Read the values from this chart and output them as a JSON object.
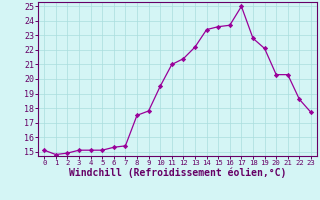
{
  "x": [
    0,
    1,
    2,
    3,
    4,
    5,
    6,
    7,
    8,
    9,
    10,
    11,
    12,
    13,
    14,
    15,
    16,
    17,
    18,
    19,
    20,
    21,
    22,
    23
  ],
  "y": [
    15.1,
    14.8,
    14.9,
    15.1,
    15.1,
    15.1,
    15.3,
    15.4,
    17.5,
    17.8,
    19.5,
    21.0,
    21.4,
    22.2,
    23.4,
    23.6,
    23.7,
    25.0,
    22.8,
    22.1,
    20.3,
    20.3,
    18.6,
    17.7
  ],
  "line_color": "#990099",
  "marker": "D",
  "marker_size": 2.2,
  "bg_color": "#d4f5f5",
  "grid_color": "#aadddd",
  "xlabel": "Windchill (Refroidissement éolien,°C)",
  "xlabel_color": "#660066",
  "ylim_min": 14.7,
  "ylim_max": 25.3,
  "xlim_min": -0.5,
  "xlim_max": 23.5,
  "yticks": [
    15,
    16,
    17,
    18,
    19,
    20,
    21,
    22,
    23,
    24,
    25
  ],
  "xticks": [
    0,
    1,
    2,
    3,
    4,
    5,
    6,
    7,
    8,
    9,
    10,
    11,
    12,
    13,
    14,
    15,
    16,
    17,
    18,
    19,
    20,
    21,
    22,
    23
  ],
  "tick_color": "#660066",
  "ytick_fontsize": 6.0,
  "xtick_fontsize": 5.2,
  "xlabel_fontsize": 7.0,
  "spine_color": "#660066",
  "line_width": 0.9
}
